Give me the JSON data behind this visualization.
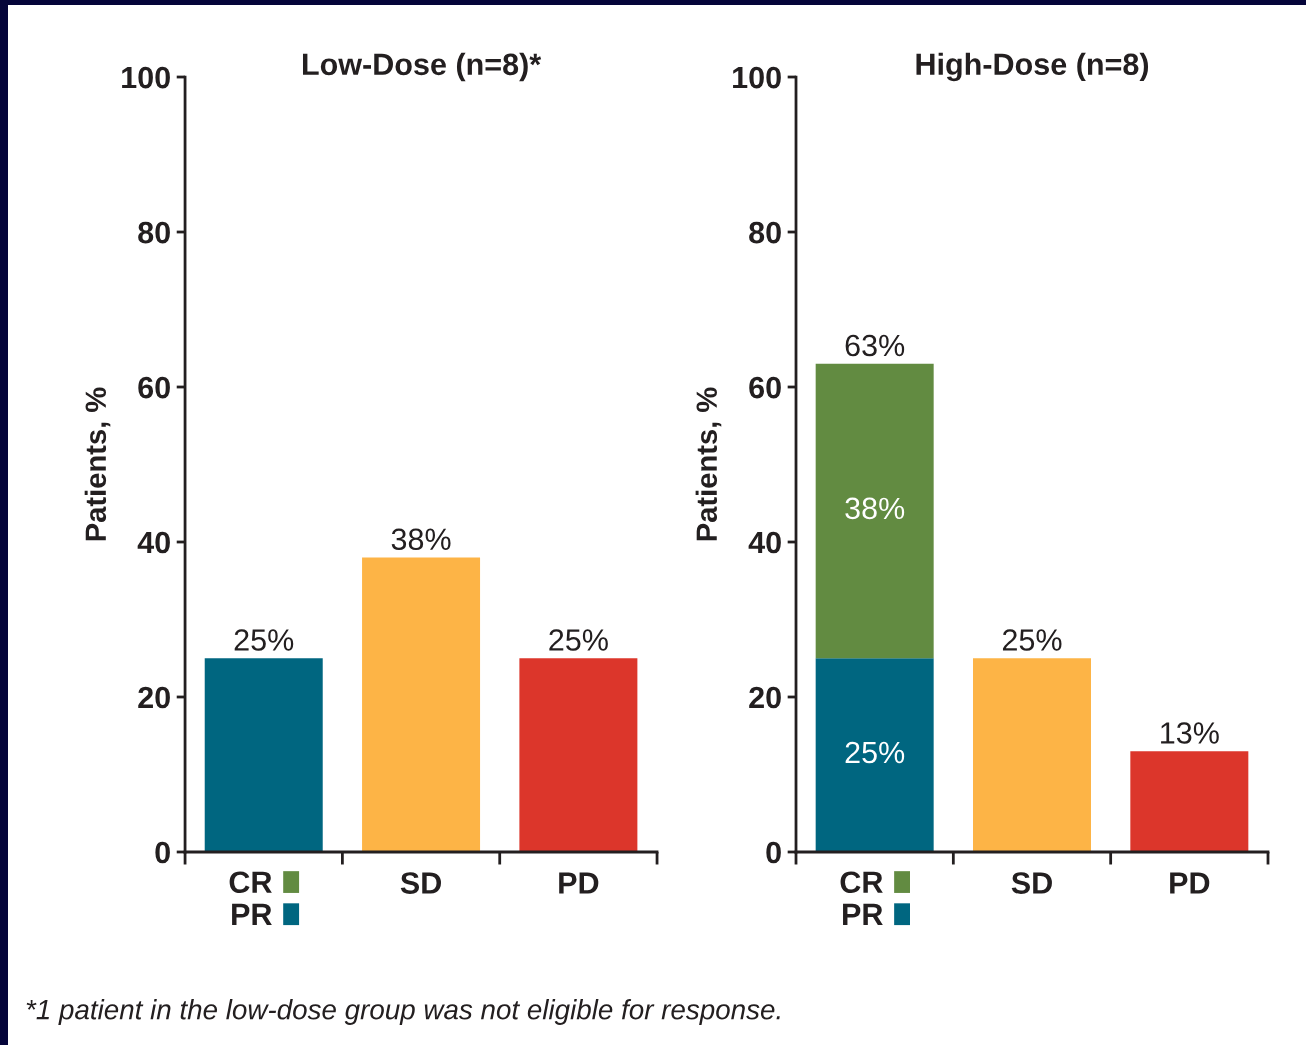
{
  "chart_data": [
    {
      "type": "bar",
      "title": "Low-Dose (n=8)*",
      "ylabel": "Patients, %",
      "categories": [
        null,
        "SD",
        "PD"
      ],
      "stacked": true,
      "series": [
        {
          "name": "PR",
          "color": "#006680",
          "values": [
            25,
            null,
            null
          ]
        },
        {
          "name": "CR",
          "color": "#628b41",
          "values": [
            null,
            null,
            null
          ]
        },
        {
          "colors": [
            null,
            "#fdb446",
            "#dc362b"
          ],
          "values": [
            null,
            38,
            25
          ]
        }
      ],
      "totals": [
        "25%",
        "38%",
        "25%"
      ],
      "ylim": [
        0,
        100
      ],
      "yticks": [
        0,
        20,
        40,
        60,
        80,
        100
      ],
      "legend": "bottom left",
      "annotations": [
        "*1 patient in the low-dose group was not eligible for response."
      ]
    },
    {
      "type": "bar",
      "title": "High-Dose (n=8)",
      "ylabel": "Patients, %",
      "categories": [
        null,
        "SD",
        "PD"
      ],
      "stacked": true,
      "series": [
        {
          "name": "PR",
          "color": "#006680",
          "values": [
            25,
            null,
            null
          ],
          "value_labels": [
            "25%",
            null,
            null
          ]
        },
        {
          "name": "CR",
          "color": "#628b41",
          "values": [
            38,
            null,
            null
          ],
          "value_labels": [
            "38%",
            null,
            null
          ]
        },
        {
          "colors": [
            null,
            "#fdb446",
            "#dc362b"
          ],
          "values": [
            null,
            25,
            13
          ]
        }
      ],
      "totals": [
        "63%",
        "25%",
        "13%"
      ],
      "ylim": [
        0,
        100
      ],
      "yticks": [
        0,
        20,
        40,
        60,
        80,
        100
      ],
      "legend": "bottom left"
    }
  ]
}
